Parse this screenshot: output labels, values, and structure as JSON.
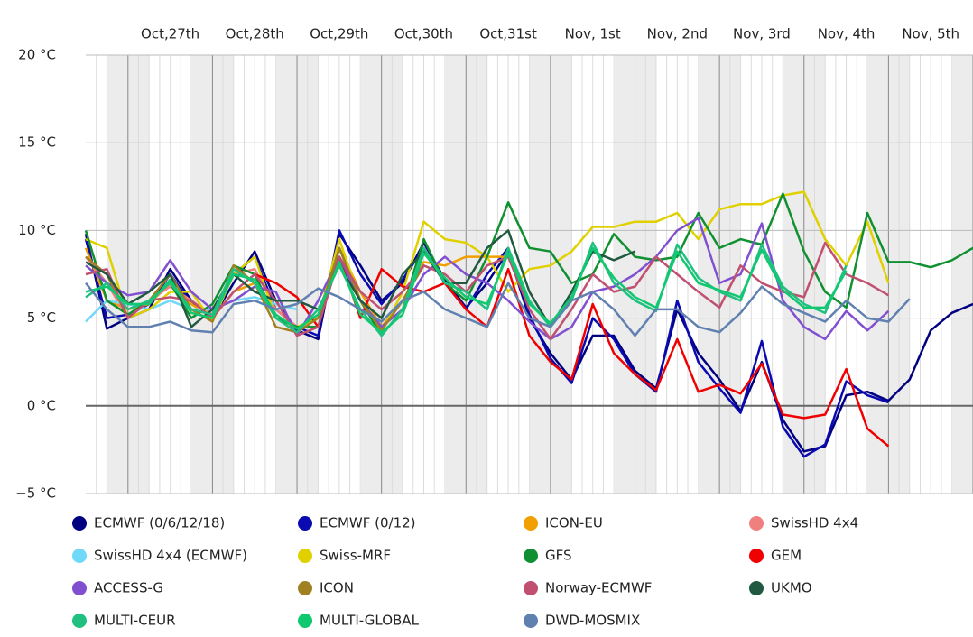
{
  "chart_data": {
    "type": "line",
    "x": [
      -0.5,
      -0.25,
      0,
      0.25,
      0.5,
      0.75,
      1,
      1.25,
      1.5,
      1.75,
      2,
      2.25,
      2.5,
      2.75,
      3,
      3.25,
      3.5,
      3.75,
      4,
      4.25,
      4.5,
      4.75,
      5,
      5.25,
      5.5,
      5.75,
      6,
      6.25,
      6.5,
      6.75,
      7,
      7.25,
      7.5,
      7.75,
      8,
      8.25,
      8.5,
      8.75,
      9,
      9.25,
      9.5,
      9.75,
      10
    ],
    "xlim": [
      -0.5,
      10
    ],
    "xticks": [
      {
        "value": 0.5,
        "label": "Oct,27th"
      },
      {
        "value": 1.5,
        "label": "Oct,28th"
      },
      {
        "value": 2.5,
        "label": "Oct,29th"
      },
      {
        "value": 3.5,
        "label": "Oct,30th"
      },
      {
        "value": 4.5,
        "label": "Oct,31st"
      },
      {
        "value": 5.5,
        "label": "Nov, 1st"
      },
      {
        "value": 6.5,
        "label": "Nov, 2nd"
      },
      {
        "value": 7.5,
        "label": "Nov, 3rd"
      },
      {
        "value": 8.5,
        "label": "Nov, 4th"
      },
      {
        "value": 9.5,
        "label": "Nov, 5th"
      }
    ],
    "ylim": [
      -5,
      20
    ],
    "yticks": [
      {
        "value": -5,
        "label": "−5 °C"
      },
      {
        "value": 0,
        "label": "0 °C"
      },
      {
        "value": 5,
        "label": "5 °C"
      },
      {
        "value": 10,
        "label": "10 °C"
      },
      {
        "value": 15,
        "label": "15 °C"
      },
      {
        "value": 20,
        "label": "20 °C"
      }
    ],
    "grid": true,
    "series": [
      {
        "name": "ECMWF (0/6/12/18)",
        "color": "#000080",
        "values": [
          9.8,
          4.4,
          5,
          5.5,
          7.8,
          6,
          5,
          7,
          8.8,
          6,
          4.3,
          3.8,
          9.8,
          8,
          6,
          7,
          9.3,
          7.2,
          5.6,
          7,
          8.8,
          5,
          3,
          1.5,
          4,
          4,
          2,
          1,
          5.5,
          3,
          1.5,
          -0.3,
          2.5,
          -0.8,
          -2.6,
          -2.3,
          0.6,
          0.8,
          0.3,
          1.5,
          4.3,
          5.3,
          5.8
        ]
      },
      {
        "name": "ECMWF (0/12)",
        "color": "#0a0ab0",
        "values": [
          9.5,
          5,
          5.2,
          5.8,
          7.5,
          5.8,
          5.2,
          7.5,
          8.5,
          5.5,
          4.5,
          4,
          10,
          7.5,
          5.8,
          7.2,
          9,
          7,
          5.5,
          7.5,
          9,
          5.2,
          2.7,
          1.3,
          5,
          3.8,
          1.8,
          0.8,
          6,
          2.5,
          1,
          -0.4,
          3.7,
          -1.2,
          -2.9,
          -2.2,
          1.4,
          0.6,
          0.2,
          null,
          null,
          null,
          null
        ]
      },
      {
        "name": "ICON-EU",
        "color": "#f0a000",
        "values": [
          9,
          6,
          5.5,
          5.8,
          7,
          5.8,
          5,
          6.5,
          7,
          5,
          4.5,
          5,
          9,
          6.5,
          4.5,
          6,
          8.2,
          8,
          8.5,
          8.5,
          8.5,
          null,
          null,
          null,
          null,
          null,
          null,
          null,
          null,
          null,
          null,
          null,
          null,
          null,
          null,
          null,
          null,
          null,
          null,
          null,
          null,
          null,
          null
        ]
      },
      {
        "name": "SwissHD 4x4",
        "color": "#f08080",
        "values": [
          8.5,
          7,
          5,
          6,
          6.8,
          6,
          5.2,
          7.5,
          7.8,
          5.5,
          4.5,
          null,
          null,
          null,
          null,
          null,
          null,
          null,
          null,
          null,
          null,
          null,
          null,
          null,
          null,
          null,
          null,
          null,
          null,
          null,
          null,
          null,
          null,
          null,
          null,
          null,
          null,
          null,
          null,
          null,
          null,
          null,
          null
        ]
      },
      {
        "name": "SwissHD 4x4 (ECMWF)",
        "color": "#70d8f8",
        "values": [
          4.8,
          6,
          5.8,
          5.5,
          6,
          5.5,
          5.5,
          6,
          6.2,
          5.8,
          5.5,
          null,
          null,
          null,
          null,
          null,
          null,
          null,
          null,
          null,
          null,
          null,
          null,
          null,
          null,
          null,
          null,
          null,
          null,
          null,
          null,
          null,
          null,
          null,
          null,
          null,
          null,
          null,
          null,
          null,
          null,
          null,
          null
        ]
      },
      {
        "name": "Swiss-MRF",
        "color": "#e0d000",
        "values": [
          9.5,
          9,
          5,
          5.5,
          6.5,
          6.5,
          4.8,
          7.5,
          8.5,
          5,
          4.5,
          5,
          9.5,
          6,
          4.2,
          6.5,
          10.5,
          9.5,
          9.3,
          8.5,
          6.5,
          7.8,
          8,
          8.8,
          10.2,
          10.2,
          10.5,
          10.5,
          11,
          9.5,
          11.2,
          11.5,
          11.5,
          12,
          12.2,
          9.5,
          8,
          10.5,
          7,
          null,
          null,
          null,
          null
        ]
      },
      {
        "name": "GFS",
        "color": "#109030",
        "values": [
          10,
          6,
          5.2,
          6,
          7,
          5,
          5.8,
          8,
          7.5,
          5,
          4.5,
          4.5,
          9,
          6,
          4,
          5.5,
          9.5,
          7,
          6,
          8.5,
          11.6,
          9,
          8.8,
          7,
          7.5,
          9.8,
          8.5,
          8.3,
          8.5,
          11,
          9,
          9.5,
          9.2,
          12.1,
          8.8,
          6.5,
          5.6,
          11,
          8.2,
          8.2,
          7.9,
          8.3,
          9
        ]
      },
      {
        "name": "GEM",
        "color": "#f00000",
        "values": [
          null,
          null,
          null,
          null,
          null,
          null,
          null,
          null,
          7.5,
          7,
          6.2,
          4.5,
          8.5,
          5,
          7.8,
          6.8,
          6.5,
          7,
          5.5,
          4.5,
          7.8,
          4,
          2.5,
          1.5,
          5.8,
          3,
          1.8,
          0.9,
          3.8,
          0.8,
          1.2,
          0.7,
          2.4,
          -0.5,
          -0.7,
          -0.5,
          2.1,
          -1.3,
          -2.3,
          null,
          null,
          null,
          null
        ]
      },
      {
        "name": "ACCESS-G",
        "color": "#8050d0",
        "values": [
          8,
          7,
          6.3,
          6.5,
          8.3,
          6.5,
          5.5,
          6,
          6.8,
          6.5,
          4,
          6,
          8.5,
          6,
          4.5,
          5.5,
          7.5,
          8.5,
          7.5,
          7,
          6,
          4.8,
          3.8,
          4.5,
          6.5,
          6.8,
          7.5,
          8.5,
          10,
          10.7,
          7,
          7.5,
          10.4,
          6,
          4.5,
          3.8,
          5.4,
          4.3,
          5.4,
          null,
          null,
          null,
          null
        ]
      },
      {
        "name": "ICON",
        "color": "#a08020",
        "values": [
          8.5,
          7.5,
          5,
          6,
          7.5,
          5.5,
          4.8,
          8,
          7,
          4.5,
          4.2,
          5,
          9,
          6,
          4.3,
          6,
          8,
          null,
          null,
          null,
          null,
          null,
          null,
          null,
          null,
          null,
          null,
          null,
          null,
          null,
          null,
          null,
          null,
          null,
          null,
          null,
          null,
          null,
          null,
          null,
          null,
          null,
          null
        ]
      },
      {
        "name": "Norway-ECMWF",
        "color": "#c05070",
        "values": [
          7.5,
          7.8,
          5,
          6,
          6.2,
          6,
          5,
          6.5,
          7.5,
          6,
          4,
          4.5,
          8.5,
          6.5,
          5.5,
          6.5,
          8,
          7.5,
          6.5,
          8,
          8.5,
          5.5,
          3.8,
          5.5,
          7.5,
          6.5,
          6.8,
          8.5,
          7.5,
          6.5,
          5.6,
          8,
          7,
          6.5,
          6.2,
          9.3,
          7.5,
          7,
          6.3,
          null,
          null,
          null,
          null
        ]
      },
      {
        "name": "UKMO",
        "color": "#205840",
        "values": [
          8.2,
          7.5,
          5.8,
          6.5,
          7.5,
          4.5,
          5.5,
          7.5,
          6.5,
          6,
          6,
          5.5,
          8,
          6,
          5,
          7.5,
          8.8,
          7,
          7,
          9,
          10,
          6.5,
          4.5,
          6.5,
          8.8,
          8.3,
          8.8,
          null,
          null,
          null,
          null,
          null,
          null,
          null,
          null,
          null,
          null,
          null,
          null,
          null,
          null,
          null,
          null
        ]
      },
      {
        "name": "MULTI-CEUR",
        "color": "#20c080",
        "values": [
          6.2,
          7,
          5.5,
          6,
          7,
          5.5,
          5.2,
          7.8,
          7,
          5,
          4.2,
          5.5,
          8,
          5.5,
          4,
          5.5,
          9,
          7,
          6.5,
          5.5,
          9,
          6,
          4.5,
          6,
          9.3,
          7,
          6,
          5.4,
          9.2,
          7.3,
          6.5,
          6,
          9.2,
          6.8,
          5.8,
          5.3,
          8,
          null,
          null,
          null,
          null,
          null,
          null
        ]
      },
      {
        "name": "MULTI-GLOBAL",
        "color": "#10c870",
        "values": [
          6.5,
          6.8,
          5.8,
          5.8,
          7.2,
          5.3,
          5,
          7.5,
          7.2,
          5.2,
          4.4,
          5.2,
          8.2,
          5.2,
          4.2,
          5.2,
          8.7,
          7.3,
          6.2,
          5.8,
          8.7,
          5.8,
          4.7,
          6.2,
          9,
          7.3,
          6.2,
          5.6,
          8.8,
          7,
          6.6,
          6.2,
          8.9,
          6.6,
          5.6,
          5.6,
          7.7,
          null,
          null,
          null,
          null,
          null,
          null
        ]
      },
      {
        "name": "DWD-MOSMIX",
        "color": "#6080b0",
        "values": [
          7,
          5.5,
          4.5,
          4.5,
          4.8,
          4.3,
          4.2,
          5.8,
          6,
          5.5,
          5.8,
          6.7,
          6.2,
          5.5,
          4.8,
          6,
          6.5,
          5.5,
          5,
          4.5,
          7,
          5,
          4.5,
          6,
          6.5,
          5.5,
          4,
          5.5,
          5.5,
          4.5,
          4.2,
          5.3,
          6.8,
          5.8,
          5.3,
          4.8,
          6,
          5,
          4.8,
          6.1,
          null,
          null,
          null
        ]
      }
    ]
  }
}
